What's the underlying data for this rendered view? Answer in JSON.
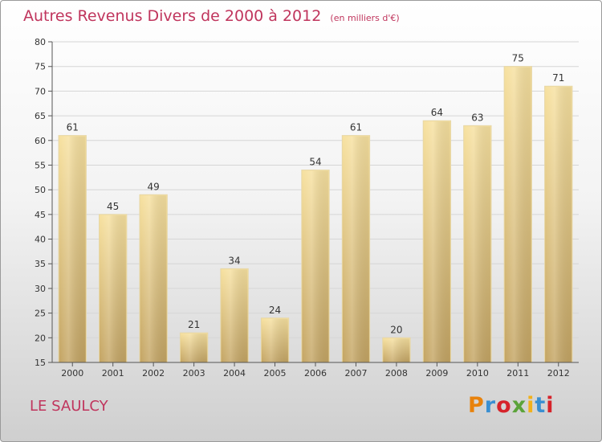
{
  "chart_data": {
    "type": "bar",
    "title": "Autres Revenus Divers de 2000 à 2012",
    "subtitle": "(en milliers d'€)",
    "categories": [
      "2000",
      "2001",
      "2002",
      "2003",
      "2004",
      "2005",
      "2006",
      "2007",
      "2008",
      "2009",
      "2010",
      "2011",
      "2012"
    ],
    "values": [
      61,
      45,
      49,
      21,
      34,
      24,
      54,
      61,
      20,
      64,
      63,
      75,
      71
    ],
    "ylim": [
      15,
      80
    ],
    "yticks": [
      15,
      20,
      25,
      30,
      35,
      40,
      45,
      50,
      55,
      60,
      65,
      70,
      75,
      80
    ],
    "grid": true,
    "legend": "none",
    "colors": {
      "bar_top": "#f7e1a0",
      "bar_bottom": "#c4a564",
      "grid": "#d6d6d6",
      "title": "#c0355d"
    }
  },
  "footer": {
    "commune": "LE SAULCY",
    "brand": "Proxiti",
    "brand_colors": [
      "#e8820c",
      "#3a8fd1",
      "#d6232a",
      "#5ba33a",
      "#f2b11b",
      "#3a8fd1",
      "#d6232a"
    ]
  }
}
